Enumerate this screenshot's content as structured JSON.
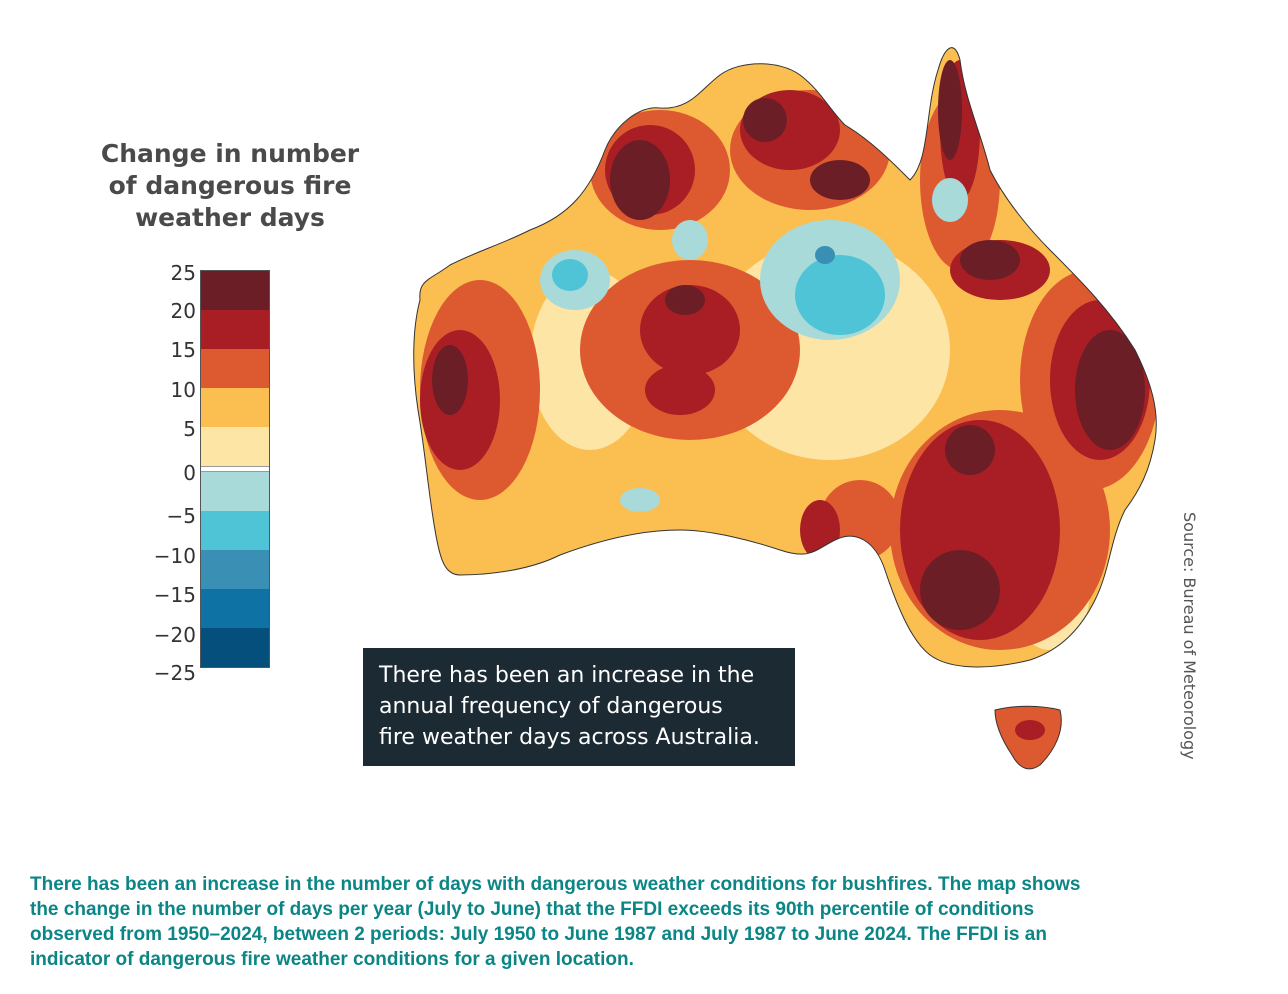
{
  "legend": {
    "title_lines": [
      "Change in number",
      "of dangerous fire",
      "weather days"
    ],
    "ticks": [
      "25",
      "20",
      "15",
      "10",
      "5",
      "0",
      "−5",
      "−10",
      "−15",
      "−20",
      "−25"
    ],
    "bands": [
      {
        "range": "20 to 25",
        "color": "#6b1e25"
      },
      {
        "range": "15 to 20",
        "color": "#a81e24"
      },
      {
        "range": "10 to 15",
        "color": "#dd5a30"
      },
      {
        "range": "5 to 10",
        "color": "#fbbf51"
      },
      {
        "range": "0 to 5",
        "color": "#fde5a5"
      },
      {
        "range": "0",
        "color": "#ffffff"
      },
      {
        "range": "0 to −5",
        "color": "#a8dada"
      },
      {
        "range": "−5 to −10",
        "color": "#4fc4d6"
      },
      {
        "range": "−10 to −15",
        "color": "#3a8fb5"
      },
      {
        "range": "−15 to −20",
        "color": "#0f72a5"
      },
      {
        "range": "−20 to −25",
        "color": "#044f7c"
      }
    ]
  },
  "callout": {
    "lines": [
      "There has been an increase in the",
      "annual frequency of dangerous",
      "fire weather days across Australia."
    ]
  },
  "source": "Source: Bureau of Meteorology",
  "caption": {
    "lines": [
      "There has been an increase in the number of days with dangerous weather conditions for bushfires. The map shows",
      "the change in the number of days per year (July to June) that the FFDI exceeds its 90th percentile of conditions",
      "observed from 1950–2024, between 2 periods: July 1950 to June 1987 and July 1987 to June 2024. The FFDI is an",
      "indicator of dangerous fire weather conditions for a given location."
    ]
  }
}
